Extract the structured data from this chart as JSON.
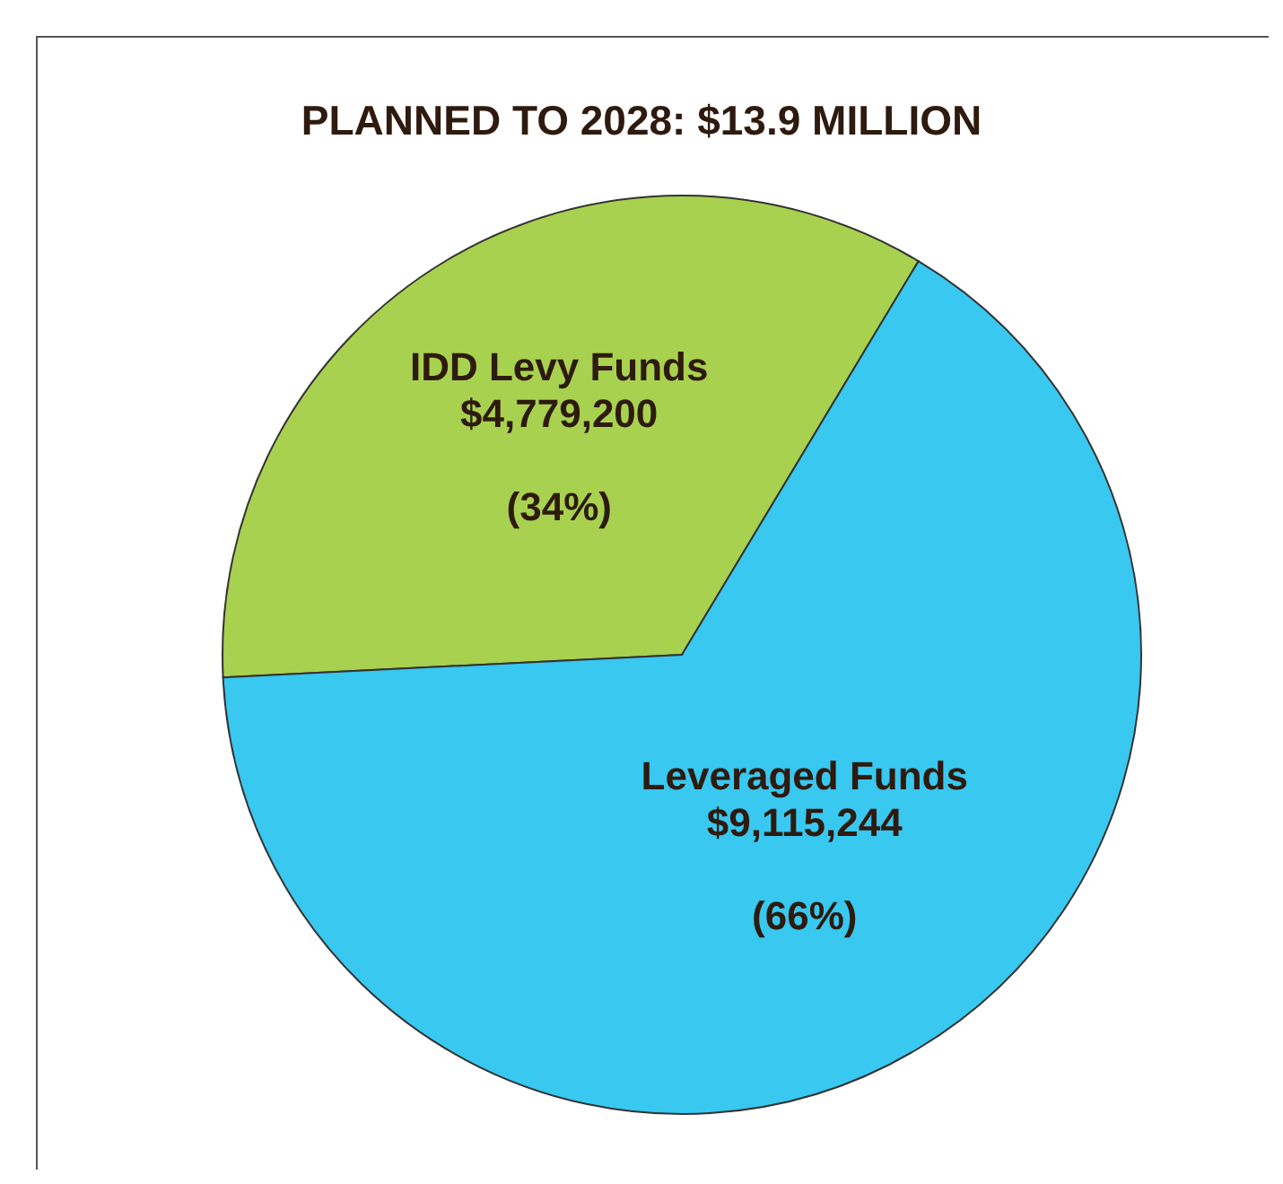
{
  "chart_data": {
    "type": "pie",
    "title": "PLANNED TO 2028: $13.9 MILLION",
    "categories": [
      "IDD Levy Funds",
      "Leveraged Funds"
    ],
    "values": [
      4779200,
      9115244
    ],
    "colors": [
      "#a8d14f",
      "#38c8f0"
    ],
    "value_labels": [
      "$4,779,200",
      "$9,115,244"
    ],
    "annotations": [
      "(34%)",
      "(66%)"
    ],
    "legend": false
  }
}
